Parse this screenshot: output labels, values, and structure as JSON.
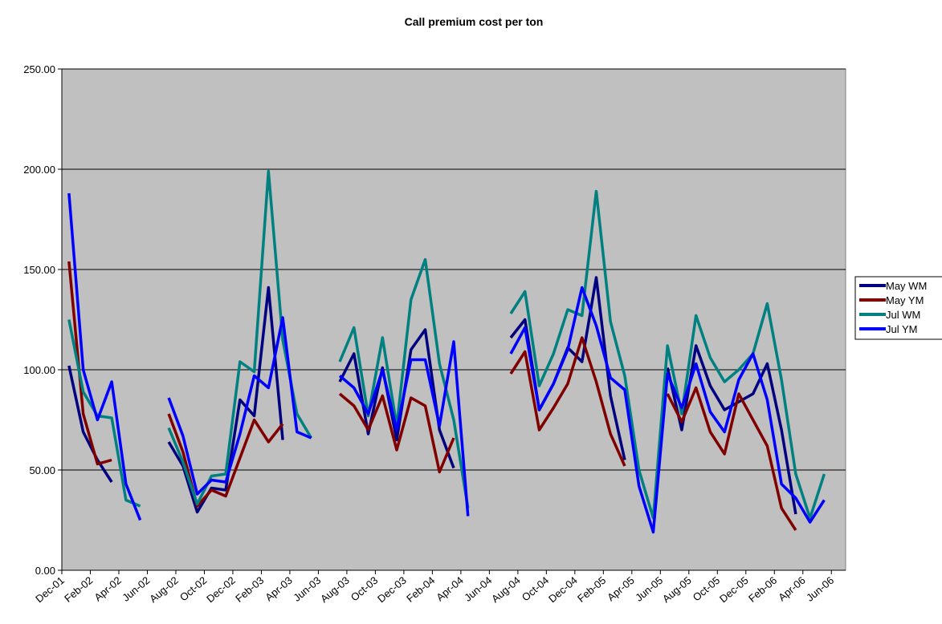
{
  "chart_data": {
    "type": "line",
    "title": "Call premium cost per ton",
    "x": [
      "Dec-01",
      null,
      "Feb-02",
      null,
      "Apr-02",
      null,
      "Jun-02",
      null,
      "Aug-02",
      null,
      "Oct-02",
      null,
      "Dec-02",
      null,
      "Feb-03",
      null,
      "Apr-03",
      null,
      "Jun-03",
      null,
      "Aug-03",
      null,
      "Oct-03",
      null,
      "Dec-03",
      null,
      "Feb-04",
      null,
      "Apr-04",
      null,
      "Jun-04",
      null,
      "Aug-04",
      null,
      "Oct-04",
      null,
      "Dec-04",
      null,
      "Feb-05",
      null,
      "Apr-05",
      null,
      "Jun-05",
      null,
      "Aug-05",
      null,
      "Oct-05",
      null,
      "Dec-05",
      null,
      "Feb-06",
      null,
      "Apr-06",
      null,
      "Jun-06"
    ],
    "series": [
      {
        "name": "May WM",
        "color": "#000080",
        "values": [
          102,
          69,
          55,
          44,
          null,
          null,
          null,
          64,
          52,
          29,
          41,
          40,
          85,
          77,
          141,
          65,
          null,
          null,
          null,
          94,
          108,
          68,
          101,
          65,
          110,
          120,
          70,
          51,
          null,
          null,
          null,
          116,
          125,
          80,
          93,
          111,
          104,
          146,
          87,
          55,
          null,
          null,
          101,
          70,
          112,
          92,
          80,
          84,
          88,
          103,
          70,
          28,
          null,
          null,
          null
        ]
      },
      {
        "name": "May YM",
        "color": "#800000",
        "values": [
          154,
          78,
          53,
          55,
          null,
          null,
          null,
          78,
          59,
          32,
          40,
          37,
          56,
          75,
          64,
          73,
          null,
          null,
          null,
          88,
          82,
          70,
          87,
          60,
          86,
          82,
          49,
          66,
          null,
          null,
          null,
          98,
          109,
          70,
          81,
          93,
          116,
          94,
          68,
          52,
          null,
          null,
          88,
          74,
          91,
          69,
          58,
          88,
          75,
          62,
          31,
          20,
          null,
          null,
          null
        ]
      },
      {
        "name": "Jul WM",
        "color": "#008080",
        "values": [
          125,
          89,
          77,
          76,
          35,
          32,
          null,
          71,
          54,
          33,
          47,
          48,
          104,
          99,
          199,
          115,
          78,
          66,
          null,
          104,
          121,
          77,
          116,
          72,
          135,
          155,
          103,
          75,
          31,
          null,
          null,
          128,
          139,
          92,
          108,
          130,
          127,
          189,
          124,
          97,
          50,
          26,
          112,
          78,
          127,
          106,
          94,
          100,
          108,
          133,
          95,
          48,
          26,
          48,
          null
        ]
      },
      {
        "name": "Jul YM",
        "color": "#0000ff",
        "values": [
          188,
          100,
          75,
          94,
          43,
          25,
          null,
          86,
          67,
          38,
          45,
          44,
          68,
          97,
          91,
          126,
          69,
          66,
          null,
          97,
          91,
          78,
          100,
          70,
          105,
          105,
          72,
          114,
          27,
          null,
          null,
          108,
          121,
          80,
          93,
          110,
          141,
          122,
          96,
          90,
          42,
          19,
          98,
          81,
          103,
          79,
          69,
          95,
          108,
          85,
          43,
          36,
          24,
          35,
          null
        ]
      }
    ],
    "ylim": [
      0,
      250
    ],
    "yticks": [
      {
        "value": 0,
        "label": "0.00"
      },
      {
        "value": 50,
        "label": "50.00"
      },
      {
        "value": 100,
        "label": "100.00"
      },
      {
        "value": 150,
        "label": "150.00"
      },
      {
        "value": 200,
        "label": "200.00"
      },
      {
        "value": 250,
        "label": "250.00"
      }
    ],
    "grid": true
  }
}
